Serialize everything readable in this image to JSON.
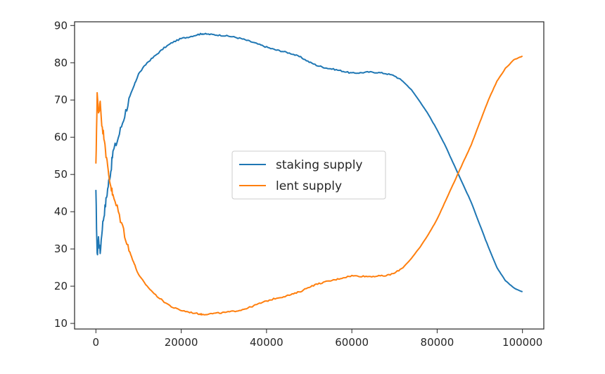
{
  "chart_data": {
    "type": "line",
    "title": "",
    "xlabel": "",
    "ylabel": "",
    "xlim": [
      -5000,
      105000
    ],
    "ylim": [
      8.5,
      91
    ],
    "x_ticks": [
      0,
      20000,
      40000,
      60000,
      80000,
      100000
    ],
    "y_ticks": [
      10,
      20,
      30,
      40,
      50,
      60,
      70,
      80,
      90
    ],
    "grid": false,
    "legend_position": "center",
    "colors": {
      "staking": "#1f77b4",
      "lent": "#ff7f0e",
      "axes": "#262626"
    },
    "series": [
      {
        "name": "staking supply",
        "color": "#1f77b4",
        "x": [
          0,
          300,
          600,
          1000,
          1500,
          2000,
          2500,
          3000,
          3500,
          4000,
          5000,
          6000,
          7000,
          8000,
          9000,
          10000,
          12000,
          14000,
          16000,
          18000,
          20000,
          22000,
          24000,
          25000,
          26000,
          28000,
          30000,
          32000,
          34000,
          36000,
          38000,
          40000,
          42000,
          44000,
          46000,
          48000,
          50000,
          52000,
          54000,
          56000,
          58000,
          60000,
          62000,
          64000,
          66000,
          68000,
          70000,
          72000,
          74000,
          76000,
          78000,
          80000,
          82000,
          84000,
          86000,
          88000,
          90000,
          92000,
          94000,
          96000,
          98000,
          100000
        ],
        "values": [
          45,
          28,
          33,
          29,
          36,
          40,
          44,
          48,
          51,
          56,
          59,
          63,
          67,
          71,
          74,
          77,
          80,
          82,
          84,
          85.5,
          86.5,
          87,
          87.6,
          87.8,
          87.7,
          87.5,
          87.3,
          87,
          86.5,
          85.8,
          85,
          84.2,
          83.5,
          83,
          82.4,
          81.5,
          80.2,
          79.2,
          78.6,
          78.2,
          77.7,
          77.2,
          77.3,
          77.5,
          77.4,
          77.1,
          76.5,
          75,
          72.7,
          69.5,
          66,
          62,
          57.5,
          52.5,
          47.5,
          42.5,
          36.5,
          30.5,
          25,
          21.5,
          19.5,
          18.5
        ]
      },
      {
        "name": "lent supply",
        "color": "#ff7f0e",
        "x": [
          0,
          300,
          600,
          1000,
          1500,
          2000,
          2500,
          3000,
          3500,
          4000,
          5000,
          6000,
          7000,
          8000,
          9000,
          10000,
          12000,
          14000,
          16000,
          18000,
          20000,
          22000,
          24000,
          25000,
          26000,
          28000,
          30000,
          32000,
          34000,
          36000,
          38000,
          40000,
          42000,
          44000,
          46000,
          48000,
          50000,
          52000,
          54000,
          56000,
          58000,
          60000,
          62000,
          64000,
          66000,
          68000,
          70000,
          72000,
          74000,
          76000,
          78000,
          80000,
          82000,
          84000,
          86000,
          88000,
          90000,
          92000,
          94000,
          96000,
          98000,
          100000
        ],
        "values": [
          52,
          72,
          66,
          70,
          62,
          60,
          54,
          50,
          47,
          44,
          41,
          37,
          33,
          29,
          26,
          23,
          20,
          17.6,
          15.8,
          14.3,
          13.5,
          13,
          12.6,
          12.4,
          12.5,
          12.7,
          12.9,
          13.2,
          13.6,
          14.3,
          15.2,
          16,
          16.7,
          17.2,
          17.8,
          18.6,
          19.8,
          20.6,
          21.2,
          21.7,
          22.3,
          22.8,
          22.7,
          22.6,
          22.7,
          22.8,
          23.5,
          25,
          27.5,
          30.5,
          34,
          38,
          43,
          48,
          53,
          58,
          64,
          70,
          75,
          78.5,
          80.8,
          81.8
        ]
      }
    ]
  }
}
